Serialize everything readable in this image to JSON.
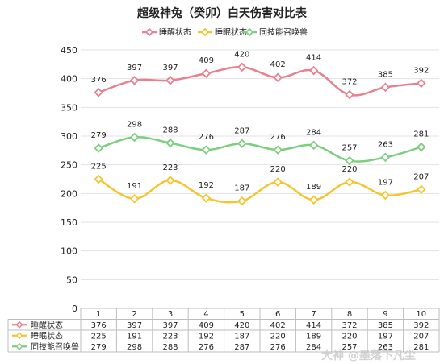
{
  "watermark": "大神 @墨落下凡尘",
  "chart_data": {
    "type": "line",
    "title": "超级神兔（癸卯）白天伤害对比表",
    "categories": [
      "1",
      "2",
      "3",
      "4",
      "5",
      "6",
      "7",
      "8",
      "9",
      "10"
    ],
    "ylim": [
      0,
      450
    ],
    "yticks": [
      0,
      50,
      100,
      150,
      200,
      250,
      300,
      350,
      400,
      450
    ],
    "grid": true,
    "legend_position": "top",
    "data_table": true,
    "series": [
      {
        "name": "睡醒状态",
        "color": "#e8808f",
        "values": [
          376,
          397,
          397,
          409,
          420,
          402,
          414,
          372,
          385,
          392
        ]
      },
      {
        "name": "睡眠状态",
        "color": "#f5c531",
        "values": [
          225,
          191,
          223,
          192,
          187,
          220,
          189,
          220,
          197,
          207
        ]
      },
      {
        "name": "同技能召唤兽",
        "color": "#7ccf7f",
        "values": [
          279,
          298,
          288,
          276,
          287,
          276,
          284,
          257,
          263,
          281
        ]
      }
    ]
  }
}
